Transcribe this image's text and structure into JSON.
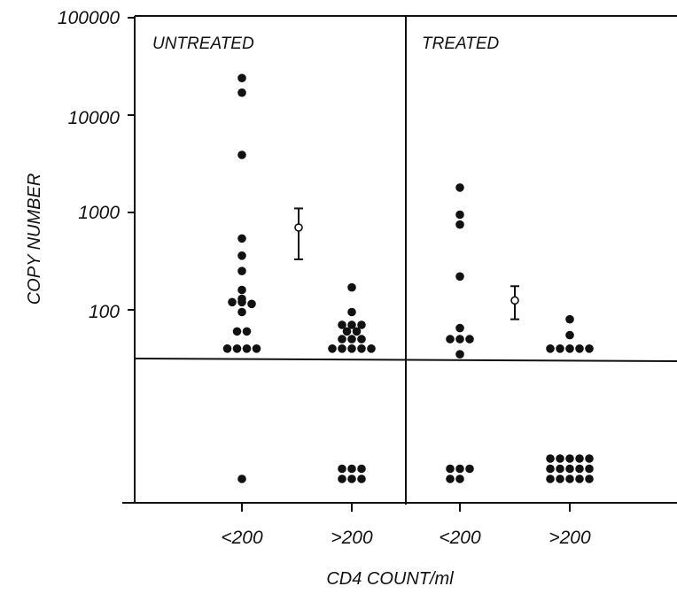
{
  "chart_data": {
    "type": "scatter",
    "title": "",
    "xlabel": "CD4 COUNT/ml",
    "ylabel": "COPY NUMBER",
    "yscale": "log",
    "ylim": [
      30,
      100000
    ],
    "y_ticks": [
      100,
      1000,
      10000,
      100000
    ],
    "y_tick_labels": [
      "100",
      "1000",
      "10000",
      "100000"
    ],
    "panels": [
      "UNTREATED",
      "TREATED"
    ],
    "categories": [
      "<200",
      ">200",
      "<200",
      ">200"
    ],
    "series": [
      {
        "group": "UNTREATED <200",
        "quantified_values": [
          24000,
          17000,
          3900,
          540,
          360,
          250,
          160,
          130,
          120,
          120,
          115,
          95,
          60,
          60,
          40,
          40,
          40,
          40
        ],
        "below_detection_count": 1
      },
      {
        "group": "UNTREATED >200",
        "quantified_values": [
          170,
          95,
          70,
          70,
          70,
          60,
          60,
          50,
          50,
          50,
          40,
          40,
          40,
          40,
          40
        ],
        "below_detection_count": 6
      },
      {
        "group": "TREATED <200",
        "quantified_values": [
          1800,
          950,
          750,
          220,
          65,
          50,
          50,
          50,
          35
        ],
        "below_detection_count": 5
      },
      {
        "group": "TREATED >200",
        "quantified_values": [
          80,
          55,
          40,
          40,
          40,
          40,
          40
        ],
        "below_detection_count": 15
      }
    ],
    "summary_markers": [
      {
        "panel": "UNTREATED",
        "mean": 700,
        "lower": 330,
        "upper": 1100
      },
      {
        "panel": "TREATED",
        "mean": 125,
        "lower": 80,
        "upper": 175
      }
    ],
    "detection_limit": 35
  }
}
